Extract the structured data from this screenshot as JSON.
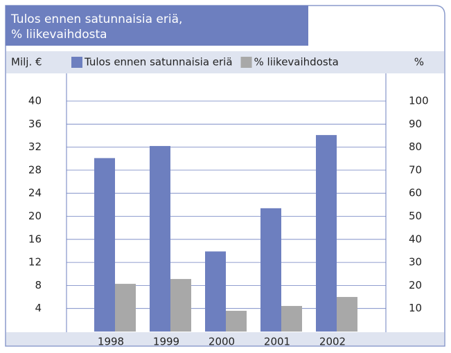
{
  "chart_data": {
    "type": "bar",
    "title": "Tulos ennen satunnaisia eriä,",
    "subtitle": "% liikevaihdosta",
    "ylabel": "Milj. €",
    "y2label": "%",
    "categories": [
      "1998",
      "1999",
      "2000",
      "2001",
      "2002"
    ],
    "series": [
      {
        "name": "Tulos ennen satunnaisia eriä",
        "color": "#6d7fbf",
        "values": [
          30.1,
          32.2,
          13.9,
          21.4,
          34.1
        ]
      },
      {
        "name": "% liikevaihdosta",
        "color": "#a8a8a8",
        "axis": "y2",
        "values": [
          20.7,
          22.8,
          9.0,
          11.1,
          15.0
        ]
      }
    ],
    "ylim": [
      0,
      40
    ],
    "yticks": [
      4,
      8,
      12,
      16,
      20,
      24,
      28,
      32,
      36,
      40
    ],
    "y2lim": [
      0,
      100
    ],
    "y2ticks": [
      10,
      20,
      30,
      40,
      50,
      60,
      70,
      80,
      90,
      100
    ],
    "grid": true
  }
}
